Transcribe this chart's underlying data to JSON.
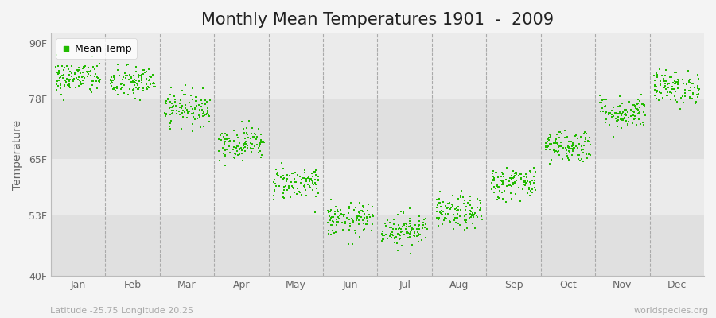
{
  "title": "Monthly Mean Temperatures 1901  -  2009",
  "ylabel": "Temperature",
  "yticks": [
    40,
    53,
    65,
    78,
    90
  ],
  "ytick_labels": [
    "40F",
    "53F",
    "65F",
    "78F",
    "90F"
  ],
  "ylim": [
    40,
    92
  ],
  "dot_color": "#22BB00",
  "dot_size": 3,
  "background_color": "#f4f4f4",
  "plot_bg_color": "#ebebeb",
  "footer_left": "Latitude -25.75 Longitude 20.25",
  "footer_right": "worldspecies.org",
  "legend_label": "Mean Temp",
  "months": [
    "Jan",
    "Feb",
    "Mar",
    "Apr",
    "May",
    "Jun",
    "Jul",
    "Aug",
    "Sep",
    "Oct",
    "Nov",
    "Dec"
  ],
  "mean_temps_f": [
    82.5,
    81.5,
    76.0,
    68.5,
    60.0,
    52.0,
    50.0,
    53.5,
    60.0,
    68.0,
    75.0,
    80.5
  ],
  "std_temps": [
    1.8,
    1.8,
    1.8,
    1.8,
    1.8,
    1.8,
    1.8,
    1.8,
    1.8,
    1.8,
    1.8,
    1.8
  ],
  "n_years": 109,
  "seed": 42,
  "title_fontsize": 15,
  "label_fontsize": 10,
  "tick_fontsize": 9,
  "footer_fontsize": 8
}
